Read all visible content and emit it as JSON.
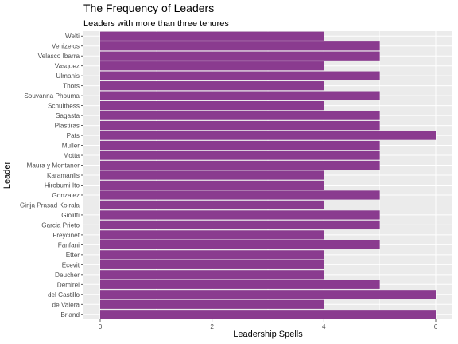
{
  "chart_data": {
    "type": "bar",
    "orientation": "horizontal",
    "title": "The Frequency of Leaders",
    "subtitle": "Leaders with more than three tenures",
    "xlabel": "Leadership Spells",
    "ylabel": "Leader",
    "xlim": [
      0,
      6.3
    ],
    "xticks": [
      0,
      2,
      4,
      6
    ],
    "grid": true,
    "bar_color": "#8a3b8f",
    "panel_color": "#ebebeb",
    "categories": [
      "Briand",
      "de Valera",
      "del Castillo",
      "Demirel",
      "Deucher",
      "Ecevit",
      "Etter",
      "Fanfani",
      "Freycinet",
      "Garcia Prieto",
      "Giolitti",
      "Girija Prasad Koirala",
      "Gonzalez",
      "Hirobumi Ito",
      "Karamanlis",
      "Maura y Montaner",
      "Motta",
      "Muller",
      "Pats",
      "Plastiras",
      "Sagasta",
      "Schulthess",
      "Souvanna Phouma",
      "Thors",
      "Ulmanis",
      "Vasquez",
      "Velasco Ibarra",
      "Venizelos",
      "Welti"
    ],
    "values": [
      6,
      4,
      6,
      5,
      4,
      4,
      4,
      5,
      4,
      5,
      5,
      4,
      5,
      4,
      4,
      5,
      5,
      5,
      6,
      5,
      5,
      4,
      5,
      4,
      5,
      4,
      5,
      5,
      4
    ]
  }
}
